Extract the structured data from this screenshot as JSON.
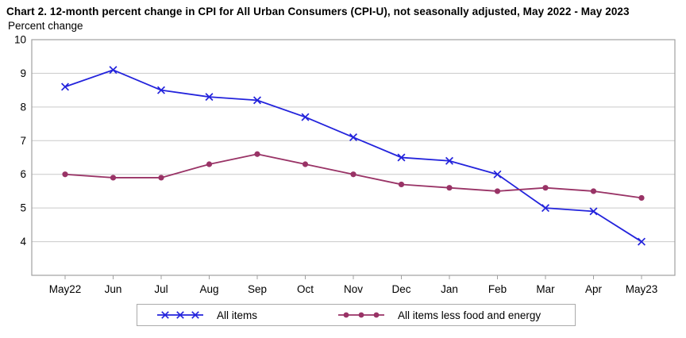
{
  "header": {
    "title": "Chart 2. 12-month percent change in CPI for All Urban Consumers (CPI-U), not seasonally adjusted, May 2022 - May 2023",
    "y_axis_caption": "Percent change"
  },
  "chart_data": {
    "type": "line",
    "title": "Chart 2. 12-month percent change in CPI for All Urban Consumers (CPI-U), not seasonally adjusted, May 2022 - May 2023",
    "xlabel": "",
    "ylabel": "Percent change",
    "categories": [
      "May22",
      "Jun",
      "Jul",
      "Aug",
      "Sep",
      "Oct",
      "Nov",
      "Dec",
      "Jan",
      "Feb",
      "Mar",
      "Apr",
      "May23"
    ],
    "series": [
      {
        "name": "All items",
        "marker": "x",
        "color": "#2323dc",
        "values": [
          8.6,
          9.1,
          8.5,
          8.3,
          8.2,
          7.7,
          7.1,
          6.5,
          6.4,
          6.0,
          5.0,
          4.9,
          4.0
        ]
      },
      {
        "name": "All items less food and energy",
        "marker": "dot",
        "color": "#993366",
        "values": [
          6.0,
          5.9,
          5.9,
          6.3,
          6.6,
          6.3,
          6.0,
          5.7,
          5.6,
          5.5,
          5.6,
          5.5,
          5.3
        ]
      }
    ],
    "ylim": [
      3,
      10
    ],
    "yticks": [
      4,
      5,
      6,
      7,
      8,
      9,
      10
    ],
    "grid": "horizontal",
    "legend_position": "bottom"
  },
  "colors": {
    "frame": "#a0a0a0",
    "gridline": "#c9c9c9",
    "tick": "#a0a0a0",
    "legend_border": "#ababab",
    "text": "#000000"
  }
}
